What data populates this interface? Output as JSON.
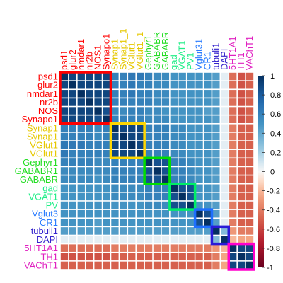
{
  "chart_data": {
    "type": "heatmap",
    "title": "",
    "xlabel": "",
    "ylabel": "",
    "value_range": [
      -1,
      1
    ],
    "labels": [
      "psd1",
      "glur2",
      "nmdar1",
      "nr2b",
      "NOS1",
      "Synapo1",
      "Synap1",
      "Synap1_1",
      "VGlut1",
      "VGlut1_1",
      "Gephyr1",
      "GABABR",
      "GABABR",
      "gad",
      "VGAT1",
      "PV1",
      "Vglut31",
      "CR1",
      "tubuli1",
      "DAPI",
      "5HT1A1",
      "TH1",
      "VAChT1"
    ],
    "row_label_text": [
      "psd1",
      "glur2",
      "nmdar1",
      "nr2b",
      "NOS",
      "Synapo1",
      "Synap1",
      "Synap1",
      "VGlut1",
      "VGlut1",
      "Gephyr1",
      "GABABR1",
      "GABABR",
      "gad",
      "VGAT1",
      "PV",
      "Vglut3",
      "CR1",
      "tubuli1",
      "DAPI",
      "5HT1A1",
      "TH1",
      "VAChT1"
    ],
    "label_colors": [
      "#ff0000",
      "#ff0000",
      "#ff0000",
      "#ff0000",
      "#ff0000",
      "#ff0000",
      "#e6c800",
      "#e6c800",
      "#e6c800",
      "#e6c800",
      "#22dd22",
      "#22dd22",
      "#22dd22",
      "#22ee88",
      "#22ee88",
      "#22ee88",
      "#2a7cff",
      "#2a7cff",
      "#3322cc",
      "#3322cc",
      "#e020c0",
      "#e020c0",
      "#e020c0"
    ],
    "matrix": [
      [
        1,
        0.9,
        0.9,
        0.9,
        0.9,
        0.9,
        0.6,
        0.6,
        0.65,
        0.65,
        0.6,
        0.55,
        0.55,
        0.5,
        0.5,
        0.5,
        0.5,
        0.5,
        0.45,
        0.05,
        -0.45,
        -0.55,
        -0.5
      ],
      [
        0.9,
        1,
        0.9,
        0.9,
        0.9,
        0.9,
        0.6,
        0.6,
        0.65,
        0.6,
        0.6,
        0.55,
        0.55,
        0.5,
        0.5,
        0.5,
        0.5,
        0.5,
        0.45,
        0.05,
        -0.45,
        -0.55,
        -0.5
      ],
      [
        0.9,
        0.9,
        1,
        0.9,
        0.9,
        0.9,
        0.6,
        0.6,
        0.65,
        0.6,
        0.6,
        0.55,
        0.55,
        0.5,
        0.5,
        0.5,
        0.5,
        0.5,
        0.45,
        0.05,
        -0.45,
        -0.55,
        -0.5
      ],
      [
        0.9,
        0.9,
        0.9,
        1,
        0.9,
        0.9,
        0.6,
        0.6,
        0.6,
        0.6,
        0.6,
        0.55,
        0.55,
        0.5,
        0.5,
        0.5,
        0.5,
        0.5,
        0.45,
        0.05,
        -0.45,
        -0.55,
        -0.5
      ],
      [
        0.9,
        0.9,
        0.9,
        0.9,
        1,
        0.85,
        0.55,
        0.55,
        0.6,
        0.6,
        0.55,
        0.55,
        0.5,
        0.5,
        0.5,
        0.5,
        0.5,
        0.45,
        0.45,
        0.05,
        -0.45,
        -0.55,
        -0.5
      ],
      [
        0.9,
        0.9,
        0.9,
        0.9,
        0.85,
        1,
        0.6,
        0.6,
        0.6,
        0.6,
        0.55,
        0.55,
        0.55,
        0.5,
        0.5,
        0.5,
        0.5,
        0.5,
        0.45,
        0.05,
        -0.45,
        -0.55,
        -0.5
      ],
      [
        0.6,
        0.6,
        0.6,
        0.6,
        0.55,
        0.6,
        1,
        0.9,
        0.9,
        0.9,
        0.6,
        0.6,
        0.6,
        0.55,
        0.55,
        0.5,
        0.5,
        0.5,
        0.45,
        0.05,
        -0.4,
        -0.5,
        -0.5
      ],
      [
        0.6,
        0.6,
        0.6,
        0.6,
        0.55,
        0.6,
        0.9,
        1,
        0.9,
        0.9,
        0.6,
        0.6,
        0.6,
        0.55,
        0.55,
        0.5,
        0.5,
        0.5,
        0.45,
        0.05,
        -0.4,
        -0.5,
        -0.5
      ],
      [
        0.65,
        0.65,
        0.65,
        0.6,
        0.6,
        0.6,
        0.9,
        0.9,
        1,
        0.9,
        0.6,
        0.6,
        0.6,
        0.55,
        0.55,
        0.5,
        0.5,
        0.5,
        0.45,
        0.05,
        -0.4,
        -0.5,
        -0.5
      ],
      [
        0.65,
        0.6,
        0.6,
        0.6,
        0.6,
        0.6,
        0.9,
        0.9,
        0.9,
        1,
        0.6,
        0.6,
        0.6,
        0.55,
        0.55,
        0.5,
        0.5,
        0.5,
        0.45,
        0.05,
        -0.4,
        -0.5,
        -0.5
      ],
      [
        0.6,
        0.6,
        0.6,
        0.6,
        0.55,
        0.55,
        0.6,
        0.6,
        0.6,
        0.6,
        1,
        0.85,
        0.85,
        0.6,
        0.6,
        0.55,
        0.5,
        0.5,
        0.45,
        0.05,
        -0.4,
        -0.5,
        -0.5
      ],
      [
        0.55,
        0.55,
        0.55,
        0.55,
        0.55,
        0.55,
        0.6,
        0.6,
        0.6,
        0.6,
        0.85,
        1,
        0.85,
        0.6,
        0.6,
        0.55,
        0.5,
        0.5,
        0.45,
        0.05,
        -0.4,
        -0.5,
        -0.5
      ],
      [
        0.55,
        0.55,
        0.55,
        0.55,
        0.5,
        0.55,
        0.6,
        0.6,
        0.6,
        0.6,
        0.85,
        0.85,
        1,
        0.6,
        0.6,
        0.55,
        0.5,
        0.5,
        0.45,
        0.05,
        -0.4,
        -0.5,
        -0.5
      ],
      [
        0.5,
        0.5,
        0.5,
        0.5,
        0.5,
        0.5,
        0.55,
        0.55,
        0.55,
        0.55,
        0.6,
        0.6,
        0.6,
        1,
        0.85,
        0.85,
        0.5,
        0.5,
        0.45,
        0.05,
        -0.4,
        -0.5,
        -0.5
      ],
      [
        0.5,
        0.5,
        0.5,
        0.5,
        0.5,
        0.5,
        0.55,
        0.55,
        0.55,
        0.55,
        0.6,
        0.6,
        0.6,
        0.85,
        1,
        0.85,
        0.5,
        0.5,
        0.45,
        0.05,
        -0.4,
        -0.5,
        -0.5
      ],
      [
        0.5,
        0.5,
        0.5,
        0.5,
        0.5,
        0.5,
        0.5,
        0.5,
        0.5,
        0.5,
        0.55,
        0.55,
        0.55,
        0.85,
        0.85,
        1,
        0.5,
        0.5,
        0.45,
        0.05,
        -0.4,
        -0.5,
        -0.5
      ],
      [
        0.5,
        0.5,
        0.5,
        0.5,
        0.5,
        0.5,
        0.5,
        0.5,
        0.5,
        0.5,
        0.5,
        0.5,
        0.5,
        0.5,
        0.5,
        0.5,
        1,
        0.85,
        0.45,
        0.05,
        -0.4,
        -0.5,
        -0.5
      ],
      [
        0.5,
        0.5,
        0.5,
        0.5,
        0.45,
        0.5,
        0.5,
        0.5,
        0.5,
        0.5,
        0.5,
        0.5,
        0.5,
        0.5,
        0.5,
        0.5,
        0.85,
        1,
        0.45,
        0.05,
        -0.4,
        -0.5,
        -0.5
      ],
      [
        0.45,
        0.45,
        0.45,
        0.45,
        0.45,
        0.45,
        0.45,
        0.45,
        0.45,
        0.45,
        0.45,
        0.45,
        0.45,
        0.45,
        0.45,
        0.45,
        0.45,
        0.45,
        1,
        0.3,
        -0.3,
        -0.4,
        -0.4
      ],
      [
        0.05,
        0.05,
        0.05,
        0.05,
        0.05,
        0.05,
        0.05,
        0.05,
        0.05,
        0.05,
        0.05,
        0.05,
        0.05,
        0.05,
        0.05,
        0.05,
        0.05,
        0.05,
        0.3,
        1,
        -0.2,
        -0.25,
        -0.25
      ],
      [
        -0.45,
        -0.45,
        -0.45,
        -0.45,
        -0.45,
        -0.45,
        -0.4,
        -0.4,
        -0.4,
        -0.4,
        -0.4,
        -0.4,
        -0.4,
        -0.4,
        -0.4,
        -0.4,
        -0.4,
        -0.4,
        -0.3,
        -0.2,
        1,
        0.9,
        0.9
      ],
      [
        -0.55,
        -0.55,
        -0.55,
        -0.55,
        -0.55,
        -0.55,
        -0.5,
        -0.5,
        -0.5,
        -0.5,
        -0.5,
        -0.5,
        -0.5,
        -0.5,
        -0.5,
        -0.5,
        -0.5,
        -0.5,
        -0.4,
        -0.25,
        0.9,
        1,
        0.9
      ],
      [
        -0.5,
        -0.5,
        -0.5,
        -0.5,
        -0.5,
        -0.5,
        -0.5,
        -0.5,
        -0.5,
        -0.5,
        -0.5,
        -0.5,
        -0.5,
        -0.5,
        -0.5,
        -0.5,
        -0.5,
        -0.5,
        -0.4,
        -0.25,
        0.9,
        0.9,
        1
      ]
    ],
    "clusters": [
      {
        "start": 0,
        "end": 5,
        "color": "#ff0000"
      },
      {
        "start": 6,
        "end": 9,
        "color": "#ffd700"
      },
      {
        "start": 10,
        "end": 12,
        "color": "#00dd00"
      },
      {
        "start": 13,
        "end": 15,
        "color": "#00ee66"
      },
      {
        "start": 16,
        "end": 17,
        "color": "#1e6fff"
      },
      {
        "start": 18,
        "end": 19,
        "color": "#2a1ad8"
      },
      {
        "start": 20,
        "end": 22,
        "color": "#ff00cc"
      }
    ],
    "colorbar": {
      "ticks": [
        1,
        0.8,
        0.6,
        0.4,
        0.2,
        0,
        -0.2,
        -0.4,
        -0.6,
        -0.8,
        -1
      ],
      "tick_labels": [
        "1",
        "0.8",
        "0.6",
        "0.4",
        "0.2",
        "0",
        "-0.2",
        "-0.4",
        "-0.6",
        "-0.8",
        "-1"
      ],
      "low_color": "#67001f",
      "mid_color": "#f7f7f7",
      "high_color": "#053061"
    }
  }
}
